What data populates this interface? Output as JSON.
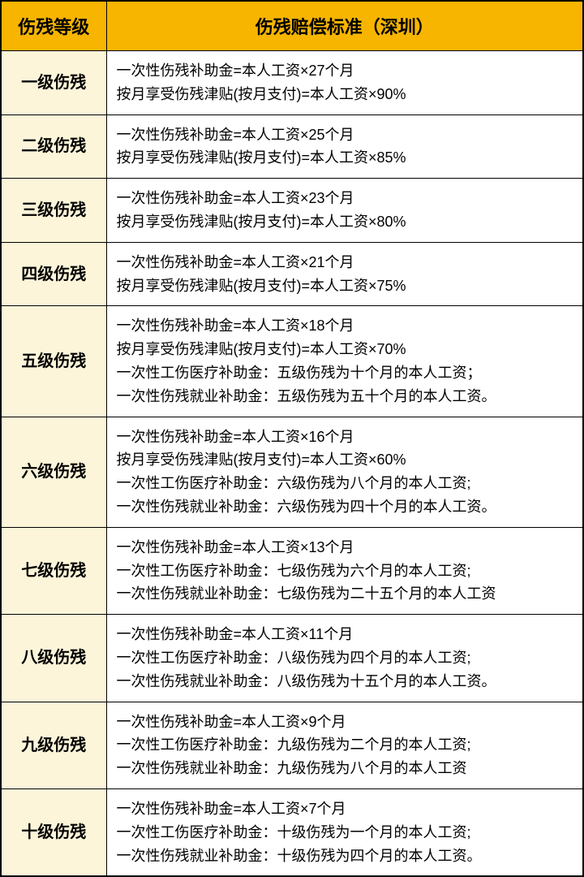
{
  "table": {
    "type": "table",
    "header_bg": "#f7b500",
    "level_cell_bg": "#fdf5d9",
    "standard_cell_bg": "#ffffff",
    "border_color": "#000000",
    "columns": [
      {
        "label": "伤残等级",
        "width": 130
      },
      {
        "label": "伤残赔偿标准（深圳）"
      }
    ],
    "rows": [
      {
        "level": "一级伤残",
        "lines": [
          "一次性伤残补助金=本人工资×27个月",
          "按月享受伤残津贴(按月支付)=本人工资×90%"
        ]
      },
      {
        "level": "二级伤残",
        "lines": [
          "一次性伤残补助金=本人工资×25个月",
          "按月享受伤残津贴(按月支付)=本人工资×85%"
        ]
      },
      {
        "level": "三级伤残",
        "lines": [
          "一次性伤残补助金=本人工资×23个月",
          "按月享受伤残津贴(按月支付)=本人工资×80%"
        ]
      },
      {
        "level": "四级伤残",
        "lines": [
          "一次性伤残补助金=本人工资×21个月",
          "按月享受伤残津贴(按月支付)=本人工资×75%"
        ]
      },
      {
        "level": "五级伤残",
        "lines": [
          "一次性伤残补助金=本人工资×18个月",
          "按月享受伤残津贴(按月支付)=本人工资×70%",
          "一次性工伤医疗补助金：五级伤残为十个月的本人工资；",
          "一次性伤残就业补助金：五级伤残为五十个月的本人工资。"
        ]
      },
      {
        "level": "六级伤残",
        "lines": [
          "一次性伤残补助金=本人工资×16个月",
          "按月享受伤残津贴(按月支付)=本人工资×60%",
          "一次性工伤医疗补助金：六级伤残为八个月的本人工资;",
          "一次性伤残就业补助金：六级伤残为四十个月的本人工资。"
        ]
      },
      {
        "level": "七级伤残",
        "lines": [
          "一次性伤残补助金=本人工资×13个月",
          "一次性工伤医疗补助金：七级伤残为六个月的本人工资;",
          "一次性伤残就业补助金：七级伤残为二十五个月的本人工资"
        ]
      },
      {
        "level": "八级伤残",
        "lines": [
          "一次性伤残补助金=本人工资×11个月",
          "一次性工伤医疗补助金：八级伤残为四个月的本人工资;",
          "一次性伤残就业补助金：八级伤残为十五个月的本人工资。"
        ]
      },
      {
        "level": "九级伤残",
        "lines": [
          "一次性伤残补助金=本人工资×9个月",
          "一次性工伤医疗补助金：九级伤残为二个月的本人工资;",
          "一次性伤残就业补助金：九级伤残为八个月的本人工资"
        ]
      },
      {
        "level": "十级伤残",
        "lines": [
          "一次性伤残补助金=本人工资×7个月",
          "一次性工伤医疗补助金：十级伤残为一个月的本人工资;",
          "一次性伤残就业补助金：十级伤残为四个月的本人工资。"
        ]
      }
    ]
  }
}
